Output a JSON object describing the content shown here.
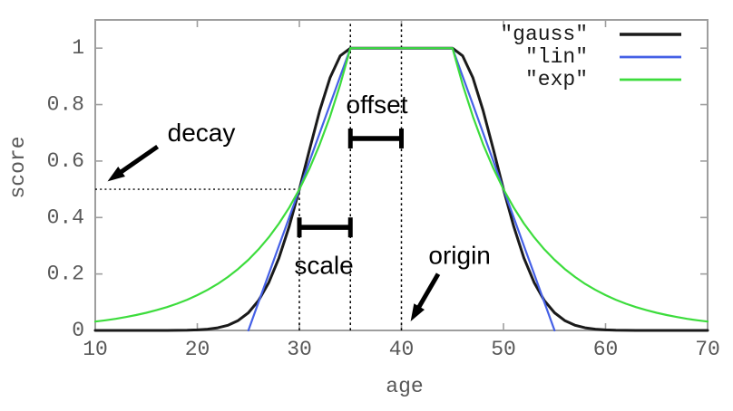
{
  "chart_data": {
    "type": "line",
    "title": "",
    "xlabel": "age",
    "ylabel": "score",
    "xlim": [
      10,
      70
    ],
    "ylim": [
      0,
      1.1
    ],
    "x_tick_values": [
      10,
      20,
      30,
      40,
      50,
      60,
      70
    ],
    "x_tick_labels": [
      "10",
      "20",
      "30",
      "40",
      "50",
      "60",
      "70"
    ],
    "y_tick_values": [
      0,
      0.2,
      0.4,
      0.6,
      0.8,
      1
    ],
    "y_tick_labels": [
      "0",
      "0.2",
      "0.4",
      "0.6",
      "0.8",
      "1"
    ],
    "grid": false,
    "legend_position": "top-right-inside",
    "decay_function_params": {
      "origin": 40,
      "offset": 5,
      "scale": 5,
      "decay": 0.5
    },
    "x_start": 10,
    "x_step": 1,
    "series": [
      {
        "name": "\"gauss\"",
        "id": "gauss",
        "color": "#1a1a1a",
        "stroke_width": 3,
        "values": [
          0,
          0,
          0,
          0,
          0,
          0,
          0,
          0.0001,
          0.0003,
          0.0008,
          0.002,
          0.0044,
          0.0092,
          0.0184,
          0.0349,
          0.0625,
          0.1058,
          0.1696,
          0.257,
          0.3686,
          0.5,
          0.6417,
          0.7792,
          0.895,
          0.9727,
          1,
          1,
          1,
          1,
          1,
          1,
          1,
          1,
          1,
          1,
          1,
          0.9727,
          0.895,
          0.7792,
          0.6417,
          0.5,
          0.3686,
          0.257,
          0.1696,
          0.1058,
          0.0625,
          0.0349,
          0.0184,
          0.0092,
          0.0044,
          0.002,
          0.0008,
          0.0003,
          0.0001,
          0,
          0,
          0,
          0,
          0,
          0,
          0
        ]
      },
      {
        "name": "\"lin\"",
        "id": "lin",
        "color": "#4560e6",
        "stroke_width": 2.2,
        "values": [
          null,
          null,
          null,
          null,
          null,
          null,
          null,
          null,
          null,
          null,
          null,
          null,
          null,
          null,
          null,
          0,
          0.1,
          0.2,
          0.3,
          0.4,
          0.5,
          0.6,
          0.7,
          0.8,
          0.9,
          1,
          1,
          1,
          1,
          1,
          1,
          1,
          1,
          1,
          1,
          1,
          0.9,
          0.8,
          0.7,
          0.6,
          0.5,
          0.4,
          0.3,
          0.2,
          0.1,
          0,
          null,
          null,
          null,
          null,
          null,
          null,
          null,
          null,
          null,
          null,
          null,
          null,
          null,
          null,
          null
        ]
      },
      {
        "name": "\"exp\"",
        "id": "exp",
        "color": "#3cdc3c",
        "stroke_width": 2.2,
        "values": [
          0.0313,
          0.0359,
          0.0412,
          0.0474,
          0.0544,
          0.0625,
          0.0718,
          0.0825,
          0.0947,
          0.1088,
          0.125,
          0.1436,
          0.1649,
          0.1895,
          0.2176,
          0.25,
          0.2872,
          0.3299,
          0.3789,
          0.4353,
          0.5,
          0.5743,
          0.6598,
          0.7579,
          0.8706,
          1,
          1,
          1,
          1,
          1,
          1,
          1,
          1,
          1,
          1,
          1,
          0.8706,
          0.7579,
          0.6598,
          0.5743,
          0.5,
          0.4353,
          0.3789,
          0.3299,
          0.2872,
          0.25,
          0.2176,
          0.1895,
          0.1649,
          0.1436,
          0.125,
          0.1088,
          0.0947,
          0.0825,
          0.0718,
          0.0625,
          0.0544,
          0.0474,
          0.0412,
          0.0359,
          0.0313
        ]
      }
    ],
    "annotations": [
      {
        "id": "decay",
        "label": "decay",
        "label_at": {
          "x": 20.4,
          "y": 0.7
        },
        "arrow": {
          "from": {
            "x": 16.1,
            "y": 0.651
          },
          "to": {
            "x": 11.2,
            "y": 0.528
          }
        }
      },
      {
        "id": "origin",
        "label": "origin",
        "label_at": {
          "x": 45.7,
          "y": 0.266
        },
        "arrow": {
          "from": {
            "x": 43.6,
            "y": 0.2
          },
          "to": {
            "x": 40.9,
            "y": 0.032
          }
        }
      },
      {
        "id": "offset",
        "label": "offset",
        "label_at": {
          "x": 37.6,
          "y": 0.8
        },
        "bracket": {
          "x_from": 35,
          "x_to": 40,
          "y": 0.68
        }
      },
      {
        "id": "scale",
        "label": "scale",
        "label_at": {
          "x": 32.4,
          "y": 0.231
        },
        "bracket": {
          "x_from": 30,
          "x_to": 35,
          "y": 0.365
        }
      }
    ],
    "guide_lines": [
      {
        "id": "decay-level-line",
        "orientation": "horizontal",
        "y": 0.5,
        "x_from": 10,
        "x_to": 30
      },
      {
        "id": "scale-start-line",
        "orientation": "vertical",
        "x": 30,
        "y_from": 0,
        "y_to": 0.5
      },
      {
        "id": "offset-edge-line",
        "orientation": "vertical",
        "x": 35,
        "y_from": 0,
        "y_to": 1.09
      },
      {
        "id": "origin-edge-line",
        "orientation": "vertical",
        "x": 40,
        "y_from": 0,
        "y_to": 1.09
      }
    ],
    "styles": {
      "border_color": "#9e9e9e",
      "tick_text_color": "#585858",
      "legend_text_color": "#1a1a1a",
      "annotation_color": "#000000",
      "background": "#ffffff"
    }
  }
}
